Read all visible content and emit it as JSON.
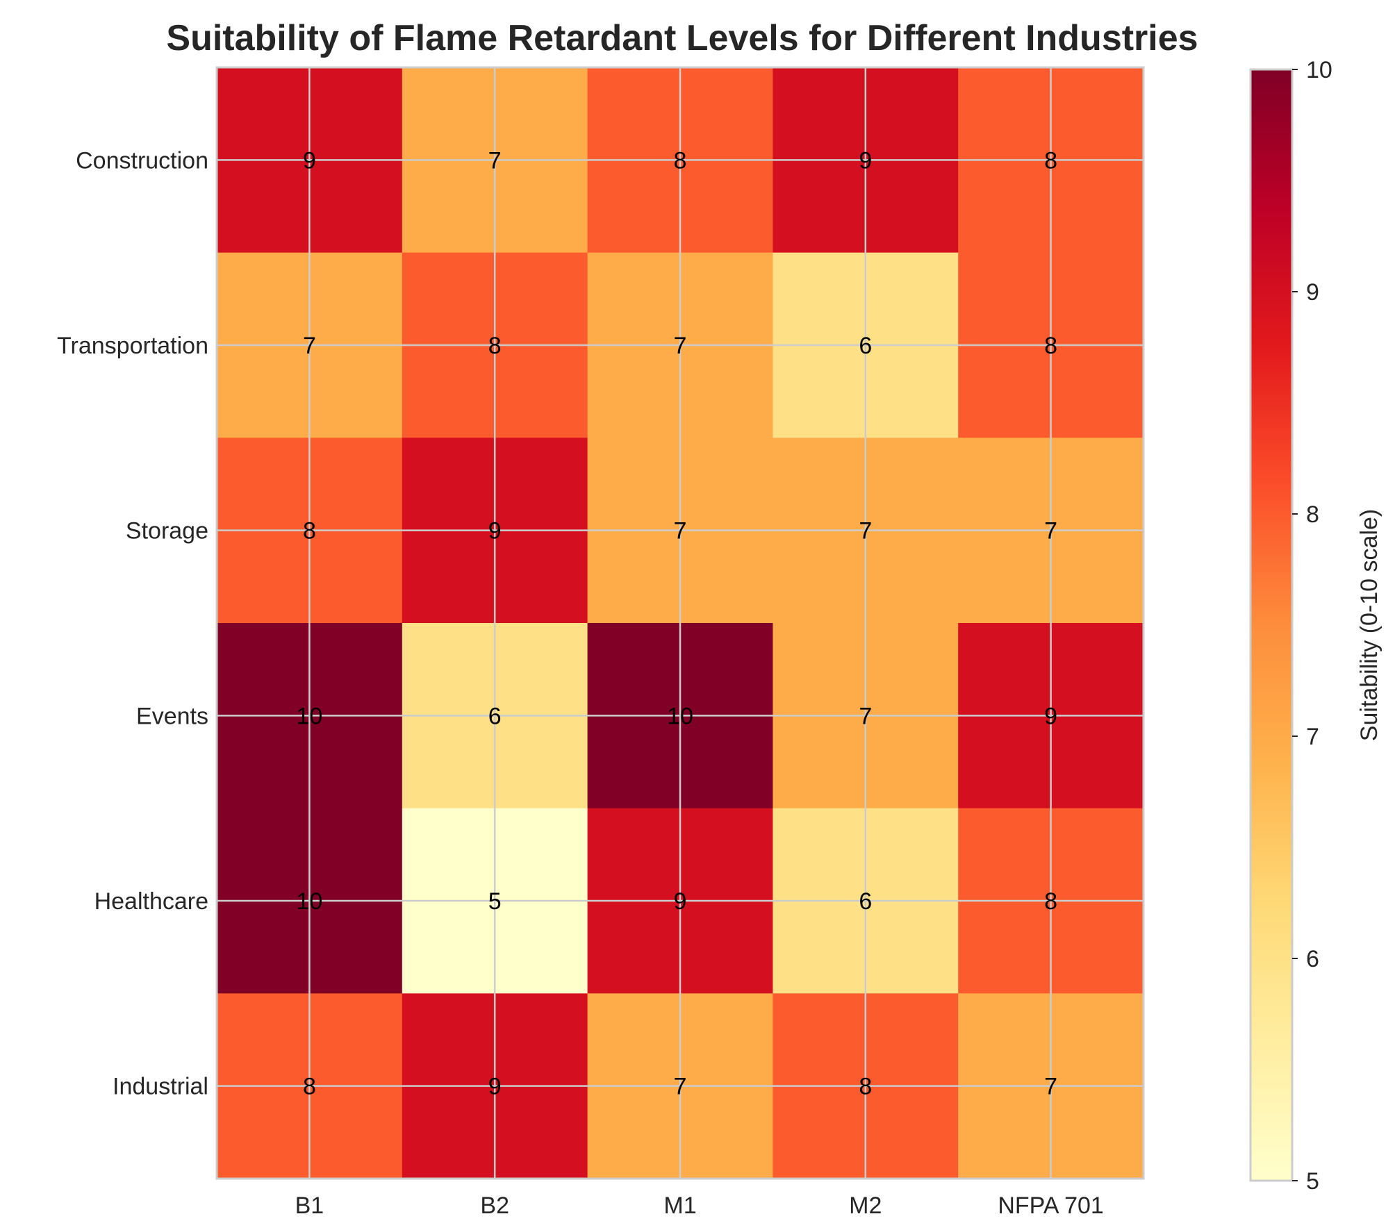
{
  "chart_data": {
    "type": "heatmap",
    "title": "Suitability of Flame Retardant Levels for Different Industries",
    "columns": [
      "B1",
      "B2",
      "M1",
      "M2",
      "NFPA 701"
    ],
    "rows": [
      "Construction",
      "Transportation",
      "Storage",
      "Events",
      "Healthcare",
      "Industrial"
    ],
    "values": [
      [
        9,
        7,
        8,
        9,
        8
      ],
      [
        7,
        8,
        7,
        6,
        8
      ],
      [
        8,
        9,
        7,
        7,
        7
      ],
      [
        10,
        6,
        10,
        7,
        9
      ],
      [
        10,
        5,
        9,
        6,
        8
      ],
      [
        8,
        9,
        7,
        8,
        7
      ]
    ],
    "colorbar": {
      "label": "Suitability (0-10 scale)",
      "min": 5,
      "max": 10,
      "ticks": [
        5,
        6,
        7,
        8,
        9,
        10
      ],
      "colormap": [
        "#ffffcc",
        "#ffeda0",
        "#fed976",
        "#feb24c",
        "#fd8d3c",
        "#fc4e2a",
        "#e31a1c",
        "#bd0026",
        "#800026"
      ]
    },
    "grid": true
  }
}
